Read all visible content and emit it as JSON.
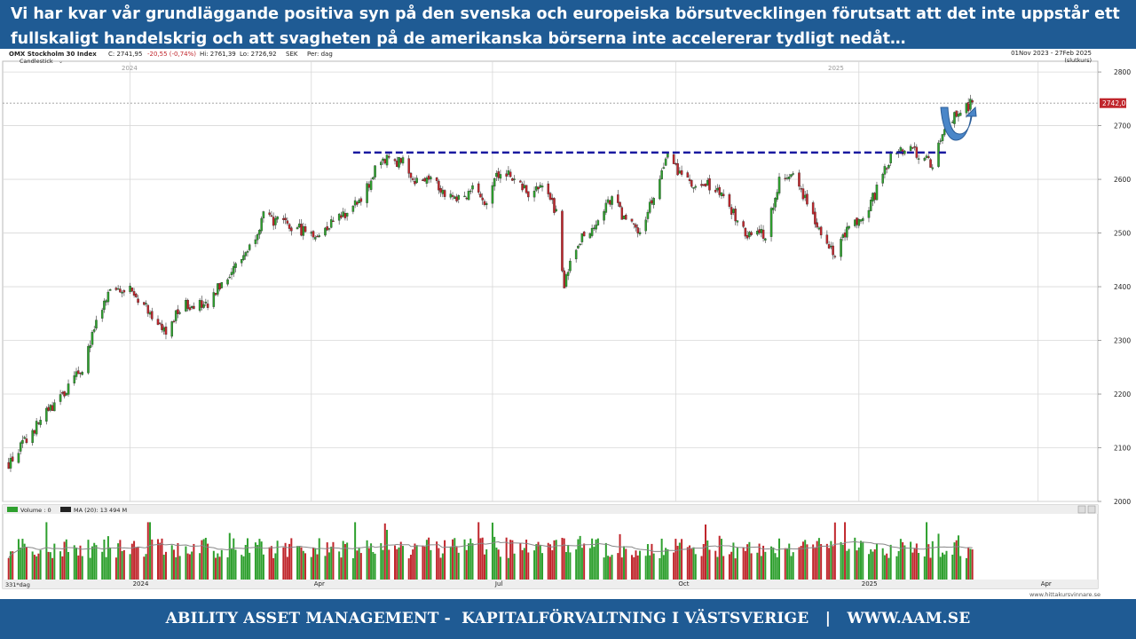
{
  "header": {
    "text": "Vi har kvar vår grundläggande positiva syn på den svenska och europeiska börsutvecklingen förutsatt att det inte uppstår ett fullskaligt handelskrig och att svagheten på de amerikanska börserna inte accelererar tydligt nedåt…"
  },
  "chart_info": {
    "instrument": "OMX Stockholm 30 Index",
    "close": "C: 2741,95",
    "change": "-20,55 (-0,74%)",
    "high": "Hi: 2761,39",
    "low": "Lo: 2726,92",
    "currency": "SEK",
    "period": "Per: dag",
    "style": "Candlestick",
    "date_range": "01Nov 2023 - 27Feb 2025",
    "price_type": "(slutkurs)",
    "last_price_label": "2742,0",
    "volume_label": "Volume : 0",
    "ma_label": "MA (20): 13 494 M",
    "span_label": "331*dag",
    "source": "www.hittakursvinnare.se"
  },
  "footer": {
    "text": "ABILITY ASSET MANAGEMENT -  KAPITALFÖRVALTNING I VÄSTSVERIGE   |   WWW.AAM.SE"
  },
  "colors": {
    "up": "#2ea02e",
    "down": "#c0262c",
    "resistance": "#1a1aa0",
    "arrow": "#4a86c8",
    "header_bg": "#1f5b94"
  },
  "chart_data": {
    "type": "candlestick",
    "ylim": [
      2000,
      2820
    ],
    "yticks": [
      2000,
      2100,
      2200,
      2300,
      2400,
      2500,
      2600,
      2700,
      2800
    ],
    "x_tick_labels_top": [
      "2024",
      "2025"
    ],
    "x_tick_labels_bottom": [
      "2024",
      "Apr",
      "Jul",
      "Oct",
      "2025",
      "Apr"
    ],
    "resistance_level": 2650,
    "last_close": 2741.95,
    "series": [
      {
        "name": "Close (approx.)",
        "points": [
          [
            "2023-11-01",
            2070
          ],
          [
            "2023-11-10",
            2115
          ],
          [
            "2023-11-20",
            2165
          ],
          [
            "2023-11-30",
            2205
          ],
          [
            "2023-12-08",
            2250
          ],
          [
            "2023-12-15",
            2330
          ],
          [
            "2023-12-22",
            2390
          ],
          [
            "2023-12-29",
            2400
          ],
          [
            "2024-01-05",
            2380
          ],
          [
            "2024-01-12",
            2350
          ],
          [
            "2024-01-19",
            2310
          ],
          [
            "2024-01-26",
            2360
          ],
          [
            "2024-02-02",
            2370
          ],
          [
            "2024-02-09",
            2360
          ],
          [
            "2024-02-16",
            2410
          ],
          [
            "2024-02-23",
            2440
          ],
          [
            "2024-03-01",
            2475
          ],
          [
            "2024-03-08",
            2530
          ],
          [
            "2024-03-15",
            2520
          ],
          [
            "2024-03-22",
            2510
          ],
          [
            "2024-03-29",
            2505
          ],
          [
            "2024-04-05",
            2495
          ],
          [
            "2024-04-12",
            2525
          ],
          [
            "2024-04-19",
            2540
          ],
          [
            "2024-04-26",
            2560
          ],
          [
            "2024-05-03",
            2615
          ],
          [
            "2024-05-10",
            2640
          ],
          [
            "2024-05-17",
            2630
          ],
          [
            "2024-05-24",
            2595
          ],
          [
            "2024-05-31",
            2610
          ],
          [
            "2024-06-07",
            2575
          ],
          [
            "2024-06-14",
            2565
          ],
          [
            "2024-06-21",
            2580
          ],
          [
            "2024-06-28",
            2560
          ],
          [
            "2024-07-05",
            2620
          ],
          [
            "2024-07-12",
            2600
          ],
          [
            "2024-07-19",
            2575
          ],
          [
            "2024-07-26",
            2590
          ],
          [
            "2024-08-02",
            2540
          ],
          [
            "2024-08-06",
            2400
          ],
          [
            "2024-08-09",
            2440
          ],
          [
            "2024-08-16",
            2500
          ],
          [
            "2024-08-23",
            2520
          ],
          [
            "2024-08-30",
            2570
          ],
          [
            "2024-09-06",
            2520
          ],
          [
            "2024-09-13",
            2500
          ],
          [
            "2024-09-20",
            2570
          ],
          [
            "2024-09-27",
            2640
          ],
          [
            "2024-10-04",
            2610
          ],
          [
            "2024-10-11",
            2580
          ],
          [
            "2024-10-18",
            2590
          ],
          [
            "2024-10-25",
            2570
          ],
          [
            "2024-11-01",
            2520
          ],
          [
            "2024-11-08",
            2490
          ],
          [
            "2024-11-15",
            2500
          ],
          [
            "2024-11-22",
            2600
          ],
          [
            "2024-11-29",
            2610
          ],
          [
            "2024-12-06",
            2560
          ],
          [
            "2024-12-13",
            2500
          ],
          [
            "2024-12-20",
            2465
          ],
          [
            "2024-12-27",
            2510
          ],
          [
            "2025-01-03",
            2530
          ],
          [
            "2025-01-10",
            2580
          ],
          [
            "2025-01-17",
            2640
          ],
          [
            "2025-01-24",
            2660
          ],
          [
            "2025-01-31",
            2645
          ],
          [
            "2025-02-07",
            2630
          ],
          [
            "2025-02-14",
            2700
          ],
          [
            "2025-02-21",
            2730
          ],
          [
            "2025-02-27",
            2741.95
          ]
        ]
      }
    ]
  }
}
